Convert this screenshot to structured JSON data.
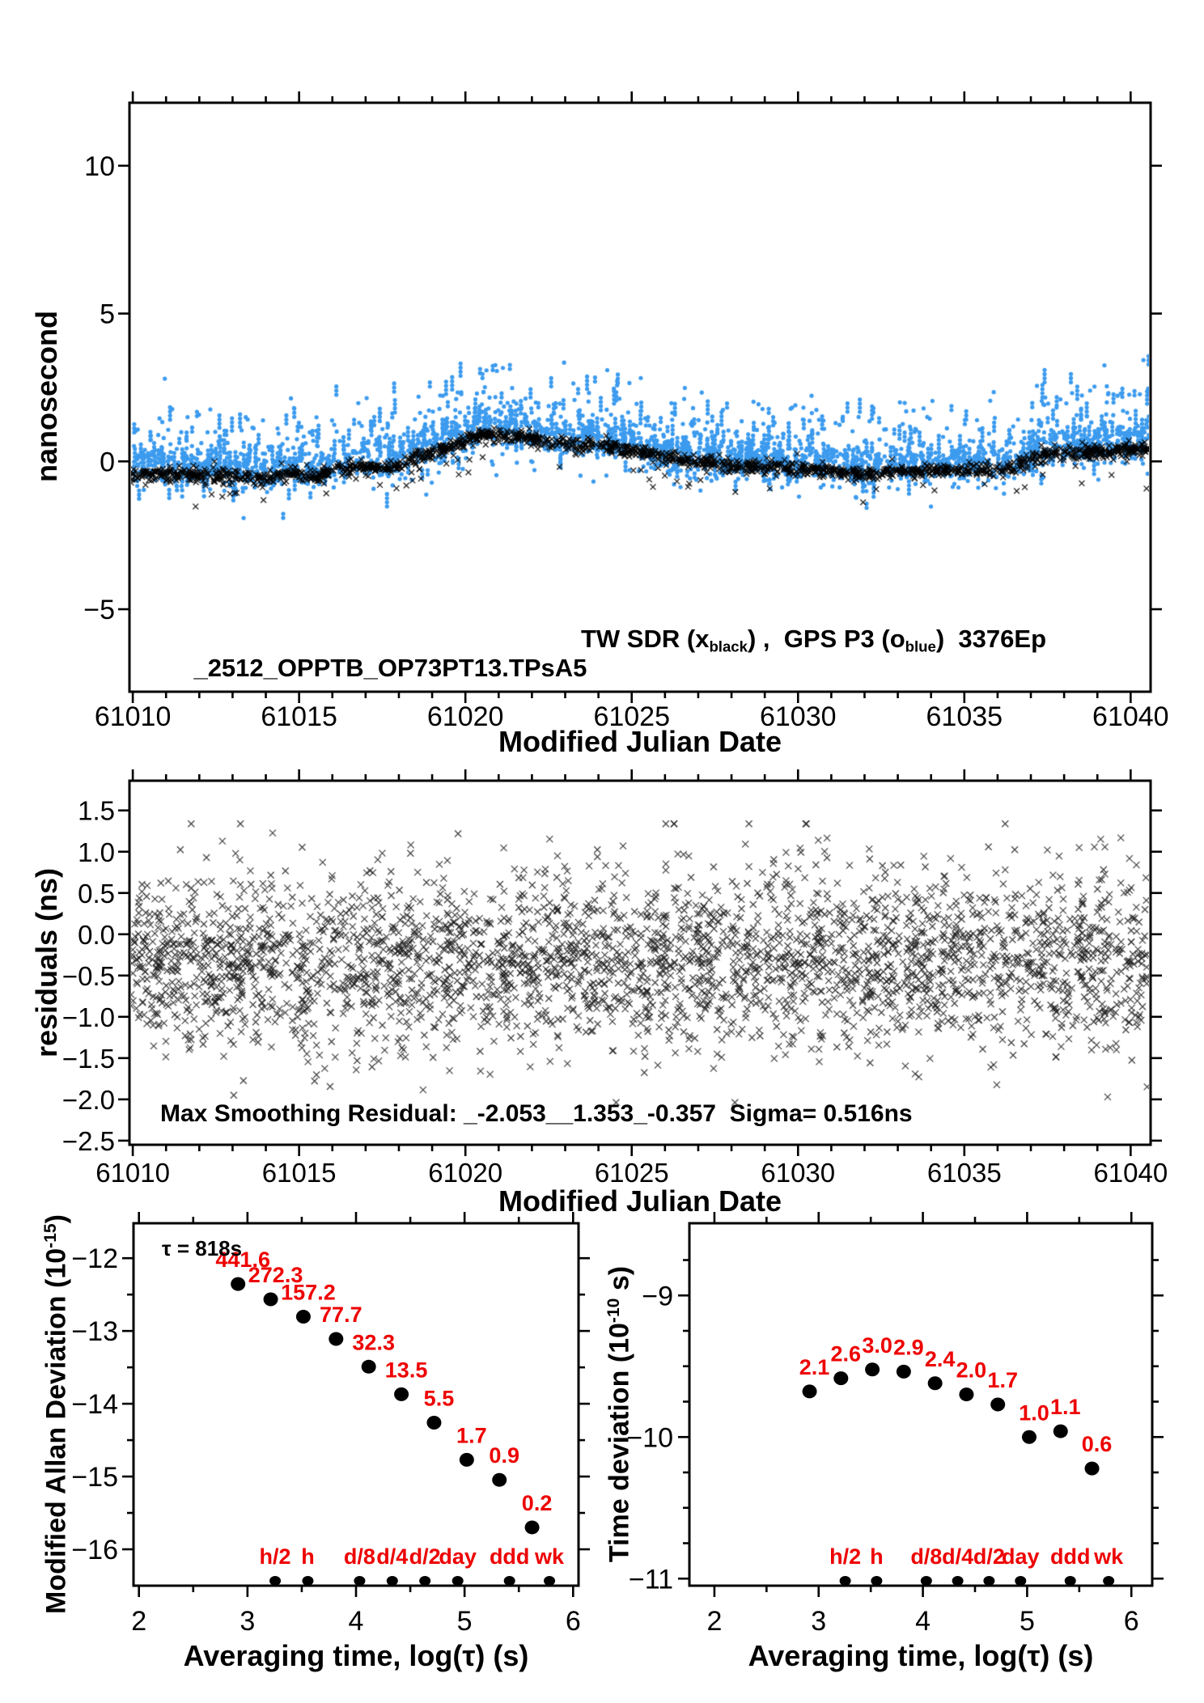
{
  "page": {
    "background": "#FFFFFF"
  },
  "colors": {
    "red": "#EE0000",
    "blue": "#3C9BEE",
    "black": "#000000"
  },
  "chart_data": [
    {
      "id": "tw-gps-comparison",
      "type": "scatter",
      "xlabel": "Modified Julian Date",
      "ylabel": "nanosecond",
      "xlim": [
        61009.9,
        61040.6
      ],
      "ylim": [
        -7.79,
        12.13
      ],
      "xticks": [
        {
          "v": 61010,
          "t": "61010"
        },
        {
          "v": 61015,
          "t": "61015"
        },
        {
          "v": 61020,
          "t": "61020"
        },
        {
          "v": 61025,
          "t": "61025"
        },
        {
          "v": 61030,
          "t": "61030"
        },
        {
          "v": 61035,
          "t": "61035"
        },
        {
          "v": 61040,
          "t": "61040"
        }
      ],
      "yticks": [
        {
          "v": 10,
          "t": "10"
        },
        {
          "v": 5,
          "t": "5"
        },
        {
          "v": 0,
          "t": "0"
        },
        {
          "v": -5,
          "t": "−5"
        }
      ],
      "title_file": "_2512_OPPTB_OP73PT13.TPsA5",
      "legend": {
        "pre": "TW SDR (x",
        "sub1": "black",
        "mid": ") ,  GPS P3 (o",
        "sub2": "blue",
        "post": ")  3376Ep"
      },
      "series": [
        {
          "name": "TW SDR",
          "marker": "x",
          "color": "#000000",
          "n": 1700,
          "noise_sd": 0.12,
          "neg_outlier_prob": 0.05,
          "neg_outlier_max": 0.9
        },
        {
          "name": "GPS P3",
          "marker": "o",
          "color": "#3C9BEE",
          "n": 2300,
          "noise_sd": 0.38,
          "offset": 0.22,
          "up_spike_prob": 0.26,
          "up_spike_max": 1.9,
          "down_spike_prob": 0.05,
          "down_spike_max": 1.1,
          "streak_prob": 0.3
        }
      ],
      "trend": [
        [
          61009.9,
          -0.45
        ],
        [
          61011,
          -0.42
        ],
        [
          61012,
          -0.48
        ],
        [
          61013,
          -0.5
        ],
        [
          61013.8,
          -0.62
        ],
        [
          61014.4,
          -0.52
        ],
        [
          61015,
          -0.4
        ],
        [
          61015.6,
          -0.48
        ],
        [
          61016.2,
          -0.32
        ],
        [
          61017,
          -0.2
        ],
        [
          61017.6,
          -0.26
        ],
        [
          61018.2,
          -0.02
        ],
        [
          61019,
          0.3
        ],
        [
          61019.6,
          0.5
        ],
        [
          61020.2,
          0.8
        ],
        [
          61020.7,
          0.97
        ],
        [
          61021.3,
          0.9
        ],
        [
          61022,
          0.72
        ],
        [
          61022.7,
          0.6
        ],
        [
          61023.4,
          0.52
        ],
        [
          61024,
          0.55
        ],
        [
          61024.6,
          0.45
        ],
        [
          61025.2,
          0.32
        ],
        [
          61026,
          0.12
        ],
        [
          61026.6,
          0.02
        ],
        [
          61027.4,
          -0.08
        ],
        [
          61028.2,
          -0.16
        ],
        [
          61029,
          -0.22
        ],
        [
          61030,
          -0.27
        ],
        [
          61031,
          -0.32
        ],
        [
          61031.8,
          -0.44
        ],
        [
          61032.6,
          -0.38
        ],
        [
          61033.4,
          -0.33
        ],
        [
          61034.4,
          -0.3
        ],
        [
          61035.4,
          -0.32
        ],
        [
          61036.2,
          -0.26
        ],
        [
          61036.7,
          -0.12
        ],
        [
          61037.2,
          0.15
        ],
        [
          61037.8,
          0.25
        ],
        [
          61038.6,
          0.3
        ],
        [
          61039.4,
          0.34
        ],
        [
          61040.6,
          0.42
        ]
      ]
    },
    {
      "id": "smoothing-residuals",
      "type": "scatter",
      "xlabel": "Modified Julian Date",
      "ylabel": "residuals (ns)",
      "xlim": [
        61009.9,
        61040.6
      ],
      "ylim": [
        -2.55,
        1.86
      ],
      "xticks": [
        {
          "v": 61010,
          "t": "61010"
        },
        {
          "v": 61015,
          "t": "61015"
        },
        {
          "v": 61020,
          "t": "61020"
        },
        {
          "v": 61025,
          "t": "61025"
        },
        {
          "v": 61030,
          "t": "61030"
        },
        {
          "v": 61035,
          "t": "61035"
        },
        {
          "v": 61040,
          "t": "61040"
        }
      ],
      "yticks": [
        {
          "v": 1.5,
          "t": "1.5"
        },
        {
          "v": 1.0,
          "t": "1.0"
        },
        {
          "v": 0.5,
          "t": "0.5"
        },
        {
          "v": 0.0,
          "t": "0.0"
        },
        {
          "v": -0.5,
          "t": "−0.5"
        },
        {
          "v": -1.0,
          "t": "−1.0"
        },
        {
          "v": -1.5,
          "t": "−1.5"
        },
        {
          "v": -2.0,
          "t": "−2.0"
        },
        {
          "v": -2.5,
          "t": "−2.5"
        }
      ],
      "annotation": "Max Smoothing Residual: _-2.053__1.353_-0.357  Sigma= 0.516ns",
      "series": [
        {
          "name": "residuals",
          "marker": "x",
          "color": "#1A1A1A",
          "n": 2800,
          "mean": -0.38,
          "sd": 0.52,
          "clip": [
            -2.053,
            1.353
          ]
        }
      ]
    },
    {
      "id": "modified-allan-deviation",
      "type": "scatter",
      "xlabel": "Averaging time, log(τ) (s)",
      "ylabel_main": "Modified Allan Deviation (10",
      "ylabel_sup": "-15",
      "ylabel_close": ")",
      "tau_note": "τ = 818s",
      "xlim": [
        1.95,
        6.05
      ],
      "ylim": [
        -16.5,
        -11.52
      ],
      "xticks": [
        {
          "v": 2,
          "t": "2"
        },
        {
          "v": 3,
          "t": "3"
        },
        {
          "v": 4,
          "t": "4"
        },
        {
          "v": 5,
          "t": "5"
        },
        {
          "v": 6,
          "t": "6"
        }
      ],
      "yticks": [
        {
          "v": -12,
          "t": "−12"
        },
        {
          "v": -13,
          "t": "−13"
        },
        {
          "v": -14,
          "t": "−14"
        },
        {
          "v": -15,
          "t": "−15"
        },
        {
          "v": -16,
          "t": "−16"
        }
      ],
      "points": {
        "x": [
          2.913,
          3.214,
          3.515,
          3.816,
          4.117,
          4.418,
          4.719,
          5.02,
          5.321,
          5.622
        ],
        "y": [
          -12.355,
          -12.565,
          -12.804,
          -13.11,
          -13.491,
          -13.87,
          -14.26,
          -14.77,
          -15.046,
          -15.699
        ],
        "labels": [
          "441.6",
          "272.3",
          "157.2",
          "77.7",
          "32.3",
          "13.5",
          "5.5",
          "1.7",
          "0.9",
          "0.2"
        ]
      },
      "time_markers": {
        "x": [
          3.255,
          3.556,
          4.033,
          4.334,
          4.635,
          4.937,
          5.414,
          5.782
        ],
        "labels": [
          "h/2",
          "h",
          "d/8",
          "d/4",
          "d/2",
          "day",
          "ddd",
          "wk"
        ]
      }
    },
    {
      "id": "time-deviation",
      "type": "scatter",
      "xlabel": "Averaging time, log(τ) (s)",
      "ylabel_main": "Time deviation (10",
      "ylabel_sup": "-10",
      "ylabel_close": " s)",
      "xlim": [
        1.76,
        6.2
      ],
      "ylim": [
        -11.05,
        -8.49
      ],
      "xticks": [
        {
          "v": 2,
          "t": "2"
        },
        {
          "v": 3,
          "t": "3"
        },
        {
          "v": 4,
          "t": "4"
        },
        {
          "v": 5,
          "t": "5"
        },
        {
          "v": 6,
          "t": "6"
        }
      ],
      "yticks": [
        {
          "v": -9,
          "t": "−9"
        },
        {
          "v": -10,
          "t": "−10"
        },
        {
          "v": -11,
          "t": "−11"
        }
      ],
      "points": {
        "x": [
          2.913,
          3.214,
          3.515,
          3.816,
          4.117,
          4.418,
          4.719,
          5.02,
          5.321,
          5.622
        ],
        "y": [
          -9.678,
          -9.585,
          -9.523,
          -9.538,
          -9.62,
          -9.699,
          -9.77,
          -10.0,
          -9.959,
          -10.222
        ],
        "labels": [
          "2.1",
          "2.6",
          "3.0",
          "2.9",
          "2.4",
          "2.0",
          "1.7",
          "1.0",
          "1.1",
          "0.6"
        ]
      },
      "time_markers": {
        "x": [
          3.255,
          3.556,
          4.033,
          4.334,
          4.635,
          4.937,
          5.414,
          5.782
        ],
        "labels": [
          "h/2",
          "h",
          "d/8",
          "d/4",
          "d/2",
          "day",
          "ddd",
          "wk"
        ]
      }
    }
  ]
}
